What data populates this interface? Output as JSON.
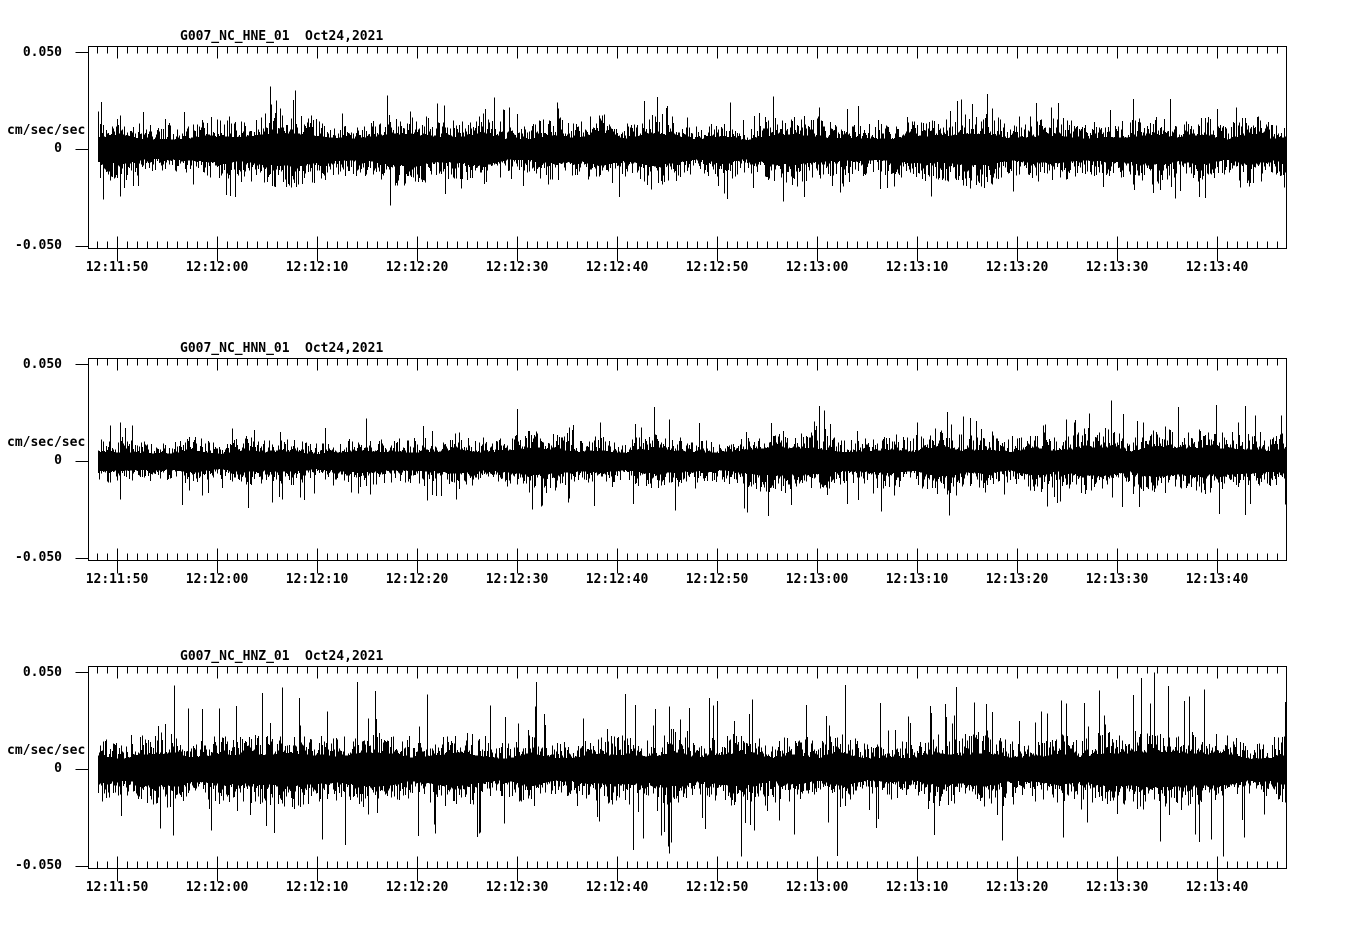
{
  "chart_data": {
    "type": "line",
    "subtype": "seismogram-traces",
    "background": "#ffffff",
    "colors": {
      "trace": "#000000",
      "axis": "#000000",
      "text": "#000000"
    },
    "x_ticks": [
      "12:11:50",
      "12:12:00",
      "12:12:10",
      "12:12:20",
      "12:12:30",
      "12:12:40",
      "12:12:50",
      "12:13:00",
      "12:13:10",
      "12:13:20",
      "12:13:30",
      "12:13:40"
    ],
    "x_axis": {
      "major_tick_interval_s": 10,
      "minor_tick_interval_s": 1,
      "first_label": "12:11:50",
      "last_label": "12:13:40"
    },
    "y_axis": {
      "ylim": [
        -0.05,
        0.05
      ],
      "tick_labels": [
        "0.050",
        "0",
        "-0.050"
      ],
      "units": "cm/sec/sec"
    },
    "panels": [
      {
        "station": "G007_NC_HNE_01",
        "date": "Oct24,2021",
        "units": "cm/sec/sec",
        "y_tick_labels": [
          "0.050",
          "0",
          "-0.050"
        ],
        "ylim": [
          -0.05,
          0.05
        ],
        "envelope": [
          0.011,
          0.012,
          0.013,
          0.012,
          0.012,
          0.013,
          0.012,
          0.013,
          0.012,
          0.012,
          0.013,
          0.012,
          0.012,
          0.013,
          0.012,
          0.012
        ],
        "seed": 20211024,
        "spike_prob": 0.05,
        "spike_mult": 2.3
      },
      {
        "station": "G007_NC_HNN_01",
        "date": "Oct24,2021",
        "units": "cm/sec/sec",
        "y_tick_labels": [
          "0.050",
          "0",
          "-0.050"
        ],
        "ylim": [
          -0.05,
          0.05
        ],
        "envelope": [
          0.009,
          0.01,
          0.008,
          0.009,
          0.01,
          0.01,
          0.011,
          0.01,
          0.011,
          0.011,
          0.011,
          0.012,
          0.011,
          0.012,
          0.012,
          0.012
        ],
        "seed": 1024,
        "spike_prob": 0.05,
        "spike_mult": 2.6
      },
      {
        "station": "G007_NC_HNZ_01",
        "date": "Oct24,2021",
        "units": "cm/sec/sec",
        "y_tick_labels": [
          "0.050",
          "0",
          "-0.050"
        ],
        "ylim": [
          -0.05,
          0.05
        ],
        "envelope": [
          0.013,
          0.014,
          0.013,
          0.014,
          0.013,
          0.013,
          0.014,
          0.013,
          0.014,
          0.013,
          0.013,
          0.014,
          0.013,
          0.014,
          0.013,
          0.014
        ],
        "seed": 7,
        "spike_prob": 0.07,
        "spike_mult": 3.2
      }
    ]
  }
}
